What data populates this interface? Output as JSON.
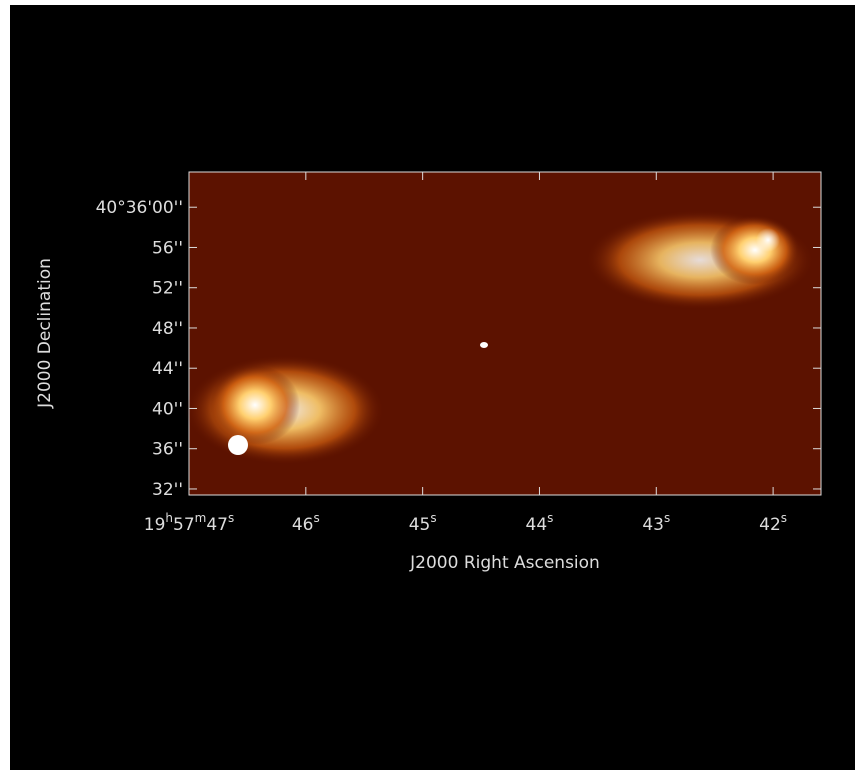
{
  "chart_data": {
    "type": "image",
    "x_label": "J2000 Right Ascension",
    "y_label": "J2000 Declination",
    "xlim": [
      47.0,
      41.59
    ],
    "ylim": [
      31.4,
      63.5
    ],
    "xticks": [
      {
        "value": 47,
        "label": [
          "19",
          "h",
          "57",
          "m",
          "47",
          "s"
        ]
      },
      {
        "value": 46,
        "label": [
          "46",
          "s"
        ]
      },
      {
        "value": 45,
        "label": [
          "45",
          "s"
        ]
      },
      {
        "value": 44,
        "label": [
          "44",
          "s"
        ]
      },
      {
        "value": 43,
        "label": [
          "43",
          "s"
        ]
      },
      {
        "value": 42,
        "label": [
          "42",
          "s"
        ]
      }
    ],
    "yticks": [
      {
        "value": 60,
        "label": "40°36'00''"
      },
      {
        "value": 56,
        "label": "56''"
      },
      {
        "value": 52,
        "label": "52''"
      },
      {
        "value": 48,
        "label": "48''"
      },
      {
        "value": 44,
        "label": "44''"
      },
      {
        "value": 40,
        "label": "40''"
      },
      {
        "value": 36,
        "label": "36''"
      },
      {
        "value": 32,
        "label": "32''"
      }
    ]
  }
}
